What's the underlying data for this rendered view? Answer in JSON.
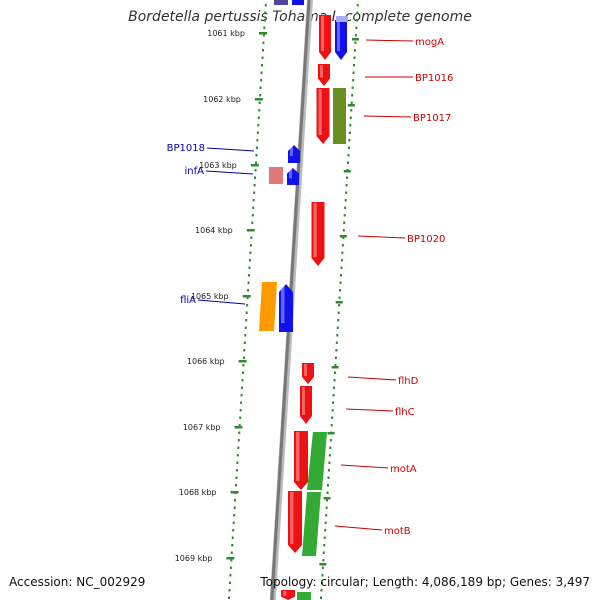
{
  "title": "Bordetella pertussis Tohama I, complete genome",
  "footer": {
    "accession": "Accession: NC_002929",
    "stats": "Topology: circular; Length: 4,086,189 bp; Genes: 3,497"
  },
  "ticks": [
    "1061 kbp",
    "1062 kbp",
    "1063 kbp",
    "1064 kbp",
    "1065 kbp",
    "1066 kbp",
    "1067 kbp",
    "1068 kbp",
    "1069 kbp"
  ],
  "left_labels": [
    "BP1018",
    "infA",
    "fliA"
  ],
  "right_labels": [
    "mogA",
    "BP1016",
    "BP1017",
    "BP1020",
    "flhD",
    "flhC",
    "motA",
    "motB"
  ],
  "colors": {
    "reverse_label": "#cc0000",
    "forward_label": "#0000aa",
    "red": "#ee1111",
    "blue": "#1111ee",
    "olive": "#6b8e23",
    "green": "#33aa33",
    "orange": "#ff9900",
    "pink": "#e07a7a",
    "lavender": "#aaaaee",
    "dots": "#2e8b2e",
    "axis": "#888888"
  }
}
